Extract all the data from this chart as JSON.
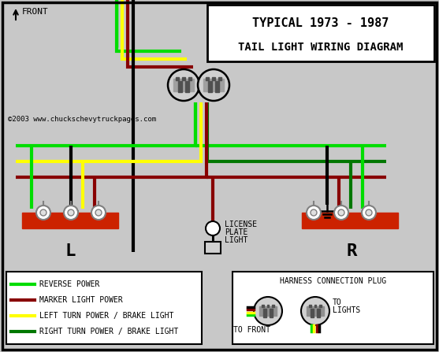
{
  "title_line1": "TYPICAL 1973 - 1987",
  "title_line2": "TAIL LIGHT WIRING DIAGRAM",
  "copyright": "©2003 www.chuckschevytruckpages.com",
  "bg_color": "#c8c8c8",
  "border_color": "#000000",
  "wire_colors": {
    "green_bright": "#00dd00",
    "dark_red": "#880000",
    "yellow": "#ffff00",
    "dark_green": "#007700",
    "black": "#000000"
  },
  "legend_items": [
    {
      "color": "#00dd00",
      "label": "REVERSE POWER"
    },
    {
      "color": "#880000",
      "label": "MARKER LIGHT POWER"
    },
    {
      "color": "#ffff00",
      "label": "LEFT TURN POWER / BRAKE LIGHT"
    },
    {
      "color": "#007700",
      "label": "RIGHT TURN POWER / BRAKE LIGHT"
    }
  ],
  "figsize": [
    5.57,
    4.47
  ],
  "dpi": 100
}
